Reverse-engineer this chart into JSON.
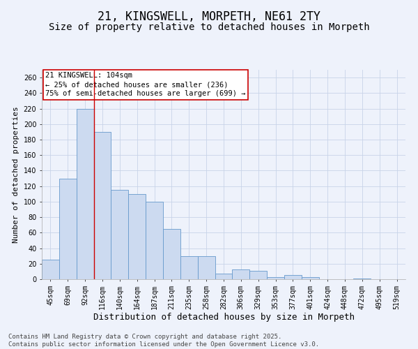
{
  "title": "21, KINGSWELL, MORPETH, NE61 2TY",
  "subtitle": "Size of property relative to detached houses in Morpeth",
  "xlabel": "Distribution of detached houses by size in Morpeth",
  "ylabel": "Number of detached properties",
  "categories": [
    "45sqm",
    "69sqm",
    "92sqm",
    "116sqm",
    "140sqm",
    "164sqm",
    "187sqm",
    "211sqm",
    "235sqm",
    "258sqm",
    "282sqm",
    "306sqm",
    "329sqm",
    "353sqm",
    "377sqm",
    "401sqm",
    "424sqm",
    "448sqm",
    "472sqm",
    "495sqm",
    "519sqm"
  ],
  "values": [
    25,
    130,
    220,
    190,
    115,
    110,
    100,
    65,
    30,
    30,
    7,
    13,
    11,
    3,
    5,
    3,
    0,
    0,
    1,
    0,
    0
  ],
  "bar_color": "#ccdaf0",
  "bar_edge_color": "#6699cc",
  "grid_color": "#c8d4e8",
  "background_color": "#eef2fb",
  "annotation_text": "21 KINGSWELL: 104sqm\n← 25% of detached houses are smaller (236)\n75% of semi-detached houses are larger (699) →",
  "annotation_box_color": "#ffffff",
  "annotation_box_edge": "#cc0000",
  "property_line_color": "#cc0000",
  "ylim": [
    0,
    270
  ],
  "yticks": [
    0,
    20,
    40,
    60,
    80,
    100,
    120,
    140,
    160,
    180,
    200,
    220,
    240,
    260
  ],
  "footer": "Contains HM Land Registry data © Crown copyright and database right 2025.\nContains public sector information licensed under the Open Government Licence v3.0.",
  "title_fontsize": 12,
  "subtitle_fontsize": 10,
  "xlabel_fontsize": 9,
  "ylabel_fontsize": 8,
  "tick_fontsize": 7,
  "footer_fontsize": 6.5,
  "annot_fontsize": 7.5
}
